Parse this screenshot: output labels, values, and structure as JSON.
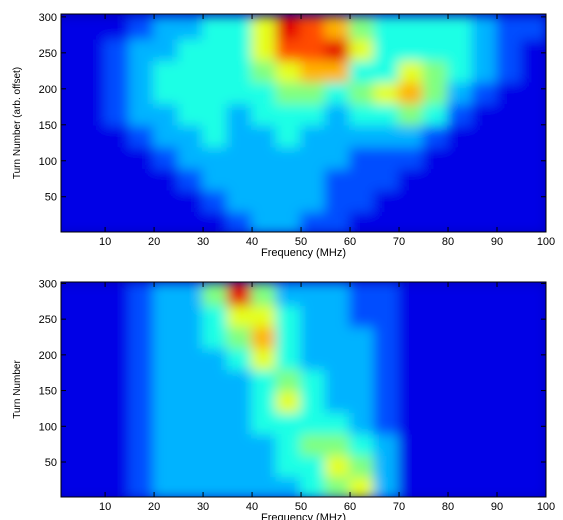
{
  "chart_data": [
    {
      "type": "heatmap",
      "xlabel": "Frequency (MHz)",
      "ylabel": "Turn Number (arb. offset)",
      "colormap": "jet",
      "xlim": [
        1,
        100
      ],
      "ylim": [
        1,
        304
      ],
      "zlim": [
        0,
        10
      ],
      "xticks": [
        10,
        20,
        30,
        40,
        50,
        60,
        70,
        80,
        90,
        100
      ],
      "yticks": [
        50,
        100,
        150,
        200,
        250,
        300
      ],
      "x": [
        2.5,
        7.5,
        12.5,
        17.5,
        22.5,
        27.5,
        32.5,
        37.5,
        42.5,
        47.5,
        52.5,
        57.5,
        62.5,
        67.5,
        72.5,
        77.5,
        82.5,
        87.5,
        92.5,
        97.5
      ],
      "y": [
        15,
        45,
        75,
        105,
        135,
        165,
        195,
        225,
        255,
        285
      ],
      "values": [
        [
          1,
          1,
          1,
          1,
          1,
          1,
          1,
          2,
          3,
          3,
          2,
          2,
          1,
          1,
          1,
          1,
          1,
          1,
          1,
          1
        ],
        [
          1,
          1,
          1,
          1,
          1,
          1,
          2,
          3,
          3,
          3,
          3,
          2,
          2,
          1,
          1,
          1,
          1,
          1,
          1,
          1
        ],
        [
          1,
          1,
          1,
          1,
          1,
          2,
          3,
          3,
          3,
          3,
          3,
          2,
          2,
          2,
          1,
          1,
          1,
          1,
          1,
          1
        ],
        [
          1,
          1,
          1,
          1,
          2,
          3,
          3,
          3,
          3,
          3,
          3,
          3,
          2,
          2,
          2,
          1,
          1,
          1,
          1,
          1
        ],
        [
          1,
          1,
          1,
          2,
          3,
          3,
          4,
          3,
          3,
          4,
          3,
          3,
          3,
          3,
          3,
          2,
          1,
          1,
          1,
          1
        ],
        [
          1,
          1,
          2,
          3,
          3,
          4,
          4,
          3,
          4,
          4,
          4,
          3,
          4,
          4,
          5,
          4,
          2,
          1,
          1,
          1
        ],
        [
          1,
          1,
          2,
          3,
          4,
          4,
          4,
          4,
          4,
          5,
          5,
          4,
          5,
          6,
          7,
          5,
          3,
          2,
          1,
          1
        ],
        [
          1,
          1,
          2,
          3,
          4,
          4,
          4,
          4,
          5,
          6,
          7,
          7,
          4,
          4,
          6,
          5,
          4,
          3,
          2,
          1
        ],
        [
          1,
          1,
          2,
          3,
          3,
          4,
          4,
          4,
          6,
          8,
          8,
          9,
          6,
          4,
          4,
          4,
          4,
          3,
          2,
          1
        ],
        [
          1,
          1,
          1,
          2,
          3,
          3,
          4,
          4,
          6,
          9,
          8,
          7,
          5,
          4,
          4,
          4,
          4,
          3,
          2,
          2
        ]
      ]
    },
    {
      "type": "heatmap",
      "xlabel": "Frequency (MHz)",
      "ylabel": "Turn Number",
      "colormap": "jet",
      "xlim": [
        1,
        100
      ],
      "ylim": [
        1,
        302
      ],
      "zlim": [
        0,
        10
      ],
      "xticks": [
        10,
        20,
        30,
        40,
        50,
        60,
        70,
        80,
        90,
        100
      ],
      "yticks": [
        50,
        100,
        150,
        200,
        250,
        300
      ],
      "x": [
        2.5,
        7.5,
        12.5,
        17.5,
        22.5,
        27.5,
        32.5,
        37.5,
        42.5,
        47.5,
        52.5,
        57.5,
        62.5,
        67.5,
        72.5,
        77.5,
        82.5,
        87.5,
        92.5,
        97.5
      ],
      "y": [
        15,
        45,
        75,
        105,
        135,
        165,
        195,
        225,
        255,
        285
      ],
      "values": [
        [
          1,
          1,
          1,
          2,
          3,
          3,
          3,
          3,
          3,
          3,
          4,
          5,
          6,
          3,
          1,
          1,
          1,
          1,
          1,
          1
        ],
        [
          1,
          1,
          1,
          2,
          3,
          3,
          3,
          3,
          3,
          4,
          4,
          6,
          5,
          3,
          1,
          1,
          1,
          1,
          1,
          1
        ],
        [
          1,
          1,
          1,
          2,
          3,
          3,
          3,
          3,
          3,
          4,
          5,
          5,
          4,
          3,
          1,
          1,
          1,
          1,
          1,
          1
        ],
        [
          1,
          1,
          1,
          2,
          3,
          3,
          3,
          3,
          4,
          4,
          4,
          4,
          3,
          2,
          1,
          1,
          1,
          1,
          1,
          1
        ],
        [
          1,
          1,
          1,
          2,
          3,
          3,
          3,
          3,
          4,
          6,
          4,
          3,
          3,
          2,
          1,
          1,
          1,
          1,
          1,
          1
        ],
        [
          1,
          1,
          1,
          2,
          3,
          3,
          3,
          3,
          4,
          5,
          4,
          3,
          3,
          2,
          1,
          1,
          1,
          1,
          1,
          1
        ],
        [
          1,
          1,
          1,
          2,
          3,
          3,
          3,
          4,
          6,
          4,
          3,
          3,
          3,
          2,
          1,
          1,
          1,
          1,
          1,
          1
        ],
        [
          1,
          1,
          1,
          2,
          3,
          3,
          4,
          5,
          7,
          4,
          3,
          3,
          3,
          2,
          1,
          1,
          1,
          1,
          1,
          1
        ],
        [
          1,
          1,
          1,
          2,
          3,
          3,
          4,
          6,
          6,
          4,
          3,
          3,
          2,
          2,
          1,
          1,
          1,
          1,
          1,
          1
        ],
        [
          1,
          1,
          1,
          2,
          3,
          3,
          5,
          9,
          5,
          3,
          3,
          3,
          2,
          2,
          1,
          1,
          1,
          1,
          1,
          1
        ]
      ]
    }
  ]
}
